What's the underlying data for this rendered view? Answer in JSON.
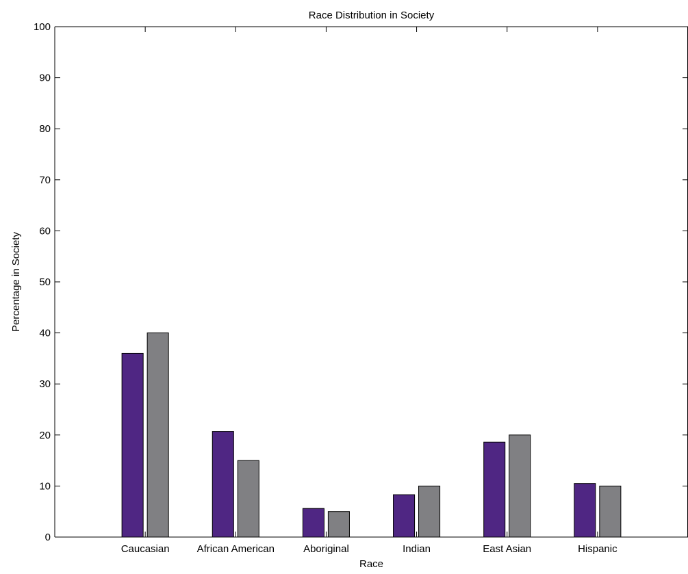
{
  "chart_data": {
    "type": "bar",
    "title": "Race Distribution in Society",
    "xlabel": "Race",
    "ylabel": "Percentage in Society",
    "ylim": [
      0,
      100
    ],
    "yticks": [
      0,
      10,
      20,
      30,
      40,
      50,
      60,
      70,
      80,
      90,
      100
    ],
    "grid": false,
    "legend": "none",
    "categories": [
      "Caucasian",
      "African American",
      "Aboriginal",
      "Indian",
      "East Asian",
      "Hispanic"
    ],
    "series": [
      {
        "values": [
          36,
          20.7,
          5.6,
          8.3,
          18.6,
          10.5
        ],
        "color": "#4f2683"
      },
      {
        "values": [
          40,
          15,
          5,
          10,
          20,
          10
        ],
        "color": "#808083"
      }
    ],
    "axis_color": "#000000"
  }
}
